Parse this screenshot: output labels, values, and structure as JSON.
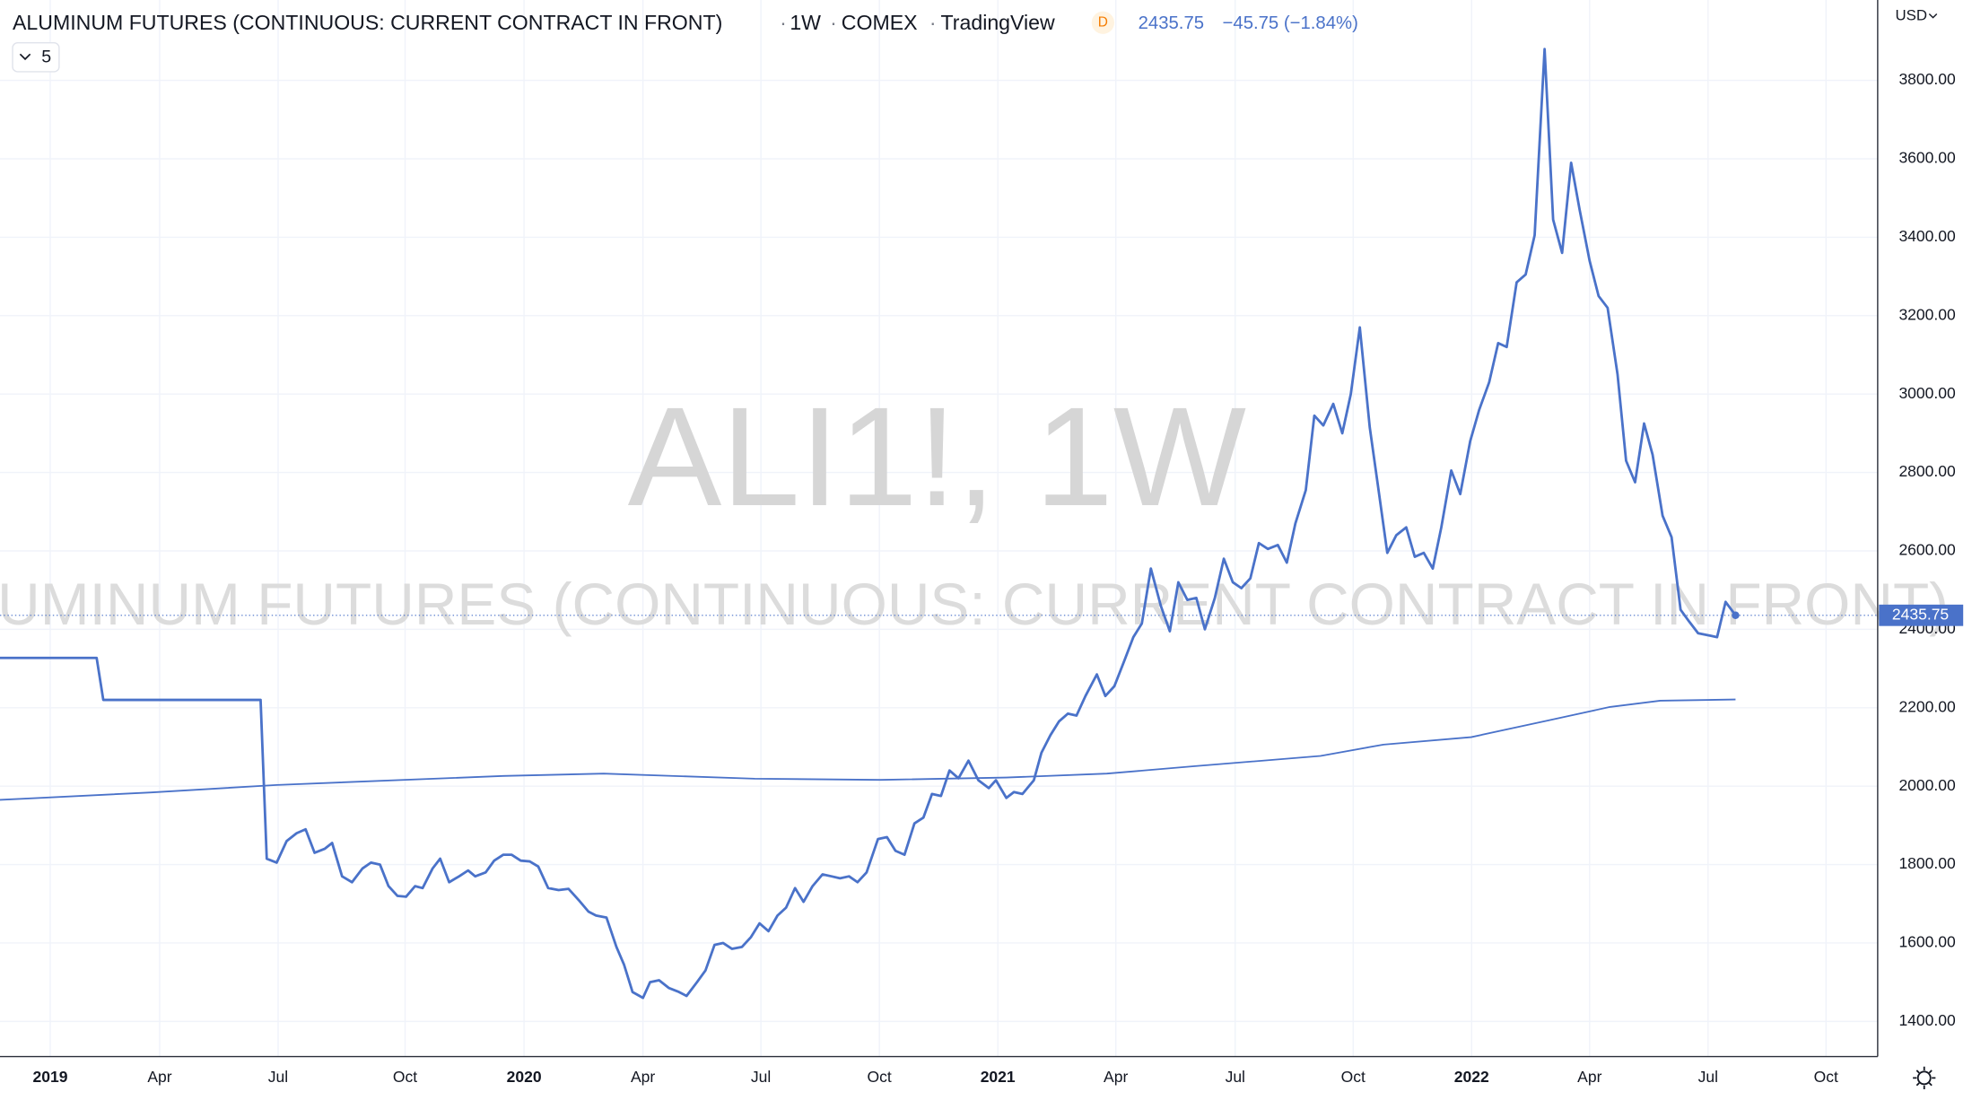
{
  "chart_data": {
    "type": "line",
    "title": "ALUMINUM FUTURES (CONTINUOUS: CURRENT CONTRACT IN FRONT)",
    "interval": "1W",
    "exchange": "COMEX",
    "source": "TradingView",
    "badge": "D",
    "last_price": 2435.75,
    "change": "−45.75 (−1.84%)",
    "indicator_count": "5",
    "watermark": "ALI1!, 1W",
    "currency": "USD",
    "grid": true,
    "xlim": [
      2018.894,
      2022.857
    ],
    "ylim": [
      1310.4,
      4005
    ],
    "xticks": [
      2019,
      {
        "value": 2019.231,
        "label": "Apr"
      },
      {
        "value": 2019.481,
        "label": "Jul"
      },
      {
        "value": 2019.749,
        "label": "Oct"
      },
      2020,
      {
        "value": 2020.251,
        "label": "Apr"
      },
      {
        "value": 2020.5,
        "label": "Jul"
      },
      {
        "value": 2020.75,
        "label": "Oct"
      },
      2021,
      {
        "value": 2021.249,
        "label": "Apr"
      },
      {
        "value": 2021.501,
        "label": "Jul"
      },
      {
        "value": 2021.75,
        "label": "Oct"
      },
      2022,
      {
        "value": 2022.249,
        "label": "Apr"
      },
      {
        "value": 2022.499,
        "label": "Jul"
      },
      {
        "value": 2022.748,
        "label": "Oct"
      }
    ],
    "yticks": [
      {
        "value": 1400,
        "label": "1400.00"
      },
      {
        "value": 1600,
        "label": "1600.00"
      },
      {
        "value": 1800,
        "label": "1800.00"
      },
      {
        "value": 2000,
        "label": "2000.00"
      },
      {
        "value": 2200,
        "label": "2200.00"
      },
      {
        "value": 2400,
        "label": "2400.00"
      },
      {
        "value": 2600,
        "label": "2600.00"
      },
      {
        "value": 2800,
        "label": "2800.00"
      },
      {
        "value": 3000,
        "label": "3000.00"
      },
      {
        "value": 3200,
        "label": "3200.00"
      },
      {
        "value": 3400,
        "label": "3400.00"
      },
      {
        "value": 3600,
        "label": "3600.00"
      },
      {
        "value": 3800,
        "label": "3800.00"
      }
    ],
    "series": [
      {
        "color": "#4a72c9",
        "x": [
          2018.894,
          2019.098,
          2019.112,
          2019.444,
          2019.457,
          2019.478,
          2019.499,
          2019.52,
          2019.539,
          2019.558,
          2019.579,
          2019.595,
          2019.616,
          2019.637,
          2019.659,
          2019.677,
          2019.696,
          2019.714,
          2019.733,
          2019.751,
          2019.77,
          2019.786,
          2019.807,
          2019.823,
          2019.842,
          2019.863,
          2019.882,
          2019.897,
          2019.919,
          2019.937,
          2019.956,
          2019.974,
          2019.993,
          2020.012,
          2020.03,
          2020.051,
          2020.073,
          2020.094,
          2020.115,
          2020.136,
          2020.152,
          2020.174,
          2020.195,
          2020.211,
          2020.229,
          2020.251,
          2020.266,
          2020.285,
          2020.306,
          2020.327,
          2020.343,
          2020.365,
          2020.383,
          2020.402,
          2020.42,
          2020.439,
          2020.46,
          2020.479,
          2020.497,
          2020.516,
          2020.535,
          2020.553,
          2020.572,
          2020.59,
          2020.609,
          2020.63,
          2020.649,
          2020.667,
          2020.686,
          2020.704,
          2020.723,
          2020.747,
          2020.766,
          2020.784,
          2020.803,
          2020.824,
          2020.843,
          2020.861,
          2020.88,
          2020.898,
          2020.917,
          2020.938,
          2020.959,
          2020.981,
          2020.996,
          2021.018,
          2021.034,
          2021.052,
          2021.076,
          2021.092,
          2021.111,
          2021.129,
          2021.148,
          2021.166,
          2021.185,
          2021.209,
          2021.227,
          2021.246,
          2021.267,
          2021.286,
          2021.304,
          2021.323,
          2021.344,
          2021.363,
          2021.381,
          2021.4,
          2021.419,
          2021.437,
          2021.458,
          2021.477,
          2021.496,
          2021.514,
          2021.533,
          2021.551,
          2021.57,
          2021.591,
          2021.61,
          2021.628,
          2021.65,
          2021.668,
          2021.687,
          2021.708,
          2021.727,
          2021.745,
          2021.764,
          2021.785,
          2021.803,
          2021.822,
          2021.841,
          2021.862,
          2021.88,
          2021.899,
          2021.918,
          2021.936,
          2021.957,
          2021.976,
          2021.997,
          2022.016,
          2022.037,
          2022.056,
          2022.074,
          2022.095,
          2022.114,
          2022.133,
          2022.154,
          2022.172,
          2022.191,
          2022.21,
          2022.228,
          2022.249,
          2022.268,
          2022.287,
          2022.308,
          2022.326,
          2022.345,
          2022.364,
          2022.382,
          2022.403,
          2022.422,
          2022.441,
          2022.459,
          2022.478,
          2022.499,
          2022.518,
          2022.536,
          2022.557
        ],
        "values": [
          2327,
          2327,
          2220,
          2220,
          1815,
          1805,
          1860,
          1880,
          1890,
          1830,
          1840,
          1855,
          1770,
          1755,
          1790,
          1805,
          1800,
          1745,
          1720,
          1718,
          1745,
          1740,
          1790,
          1815,
          1755,
          1770,
          1785,
          1770,
          1780,
          1810,
          1825,
          1825,
          1810,
          1808,
          1795,
          1740,
          1735,
          1738,
          1710,
          1680,
          1670,
          1665,
          1590,
          1545,
          1475,
          1460,
          1500,
          1505,
          1485,
          1475,
          1465,
          1500,
          1530,
          1595,
          1600,
          1585,
          1590,
          1615,
          1650,
          1630,
          1670,
          1690,
          1740,
          1705,
          1745,
          1775,
          1770,
          1765,
          1770,
          1755,
          1780,
          1865,
          1870,
          1835,
          1825,
          1905,
          1920,
          1980,
          1975,
          2040,
          2020,
          2065,
          2015,
          1995,
          2015,
          1970,
          1985,
          1980,
          2015,
          2085,
          2130,
          2165,
          2185,
          2180,
          2230,
          2285,
          2230,
          2255,
          2320,
          2380,
          2415,
          2555,
          2460,
          2395,
          2520,
          2475,
          2480,
          2400,
          2480,
          2580,
          2520,
          2505,
          2530,
          2620,
          2605,
          2615,
          2570,
          2670,
          2755,
          2945,
          2920,
          2975,
          2900,
          3000,
          3170,
          2915,
          2760,
          2595,
          2640,
          2660,
          2585,
          2595,
          2555,
          2660,
          2805,
          2745,
          2880,
          2960,
          3030,
          3130,
          3120,
          3285,
          3305,
          3405,
          3880,
          3445,
          3360,
          3590,
          3470,
          3340,
          3250,
          3220,
          3050,
          2830,
          2775,
          2925,
          2845,
          2690,
          2635,
          2450,
          2420,
          2390,
          2385,
          2380,
          2470,
          2435.75
        ]
      },
      {
        "color": "#4a72c9",
        "x": [
          2018.894,
          2019.213,
          2019.478,
          2019.956,
          2020.168,
          2020.487,
          2020.752,
          2021.018,
          2021.23,
          2021.416,
          2021.681,
          2021.814,
          2021.999,
          2022.159,
          2022.292,
          2022.398,
          2022.557
        ],
        "values": [
          1965,
          1984,
          2003,
          2026,
          2032,
          2019,
          2016,
          2022,
          2032,
          2051,
          2077,
          2106,
          2125,
          2167,
          2202,
          2218,
          2221
        ]
      }
    ]
  }
}
